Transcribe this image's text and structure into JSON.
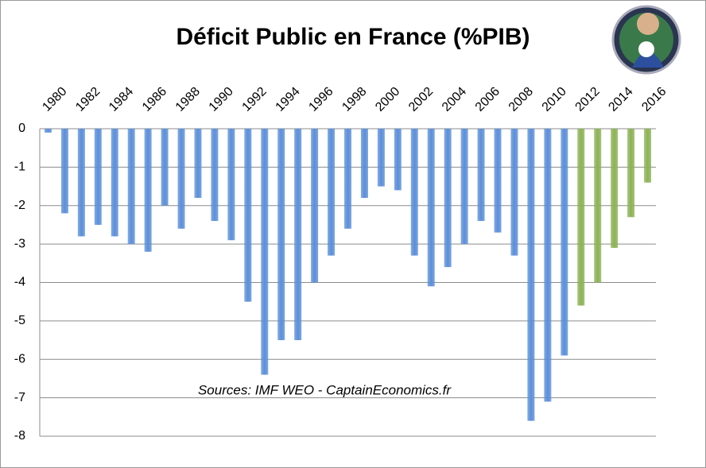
{
  "chart_data": {
    "type": "bar",
    "title": "Déficit Public en France (%PIB)",
    "annotation": "Sources: IMF WEO - CaptainEconomics.fr",
    "categories": [
      "1980",
      null,
      "1982",
      null,
      "1984",
      null,
      "1986",
      null,
      "1988",
      null,
      "1990",
      null,
      "1992",
      null,
      "1994",
      null,
      "1996",
      null,
      "1998",
      null,
      "2000",
      null,
      "2002",
      null,
      "2004",
      null,
      "2006",
      null,
      "2008",
      null,
      "2010",
      null,
      "2012",
      null,
      "2014",
      null,
      "2016"
    ],
    "values": [
      -0.1,
      -2.2,
      -2.8,
      -2.5,
      -2.8,
      -3.0,
      -3.2,
      -2.0,
      -2.6,
      -1.8,
      -2.4,
      -2.9,
      -4.5,
      -6.4,
      -5.5,
      -5.5,
      -4.0,
      -3.3,
      -2.6,
      -1.8,
      -1.5,
      -1.6,
      -3.3,
      -4.1,
      -3.6,
      -3.0,
      -2.4,
      -2.7,
      -3.3,
      -7.6,
      -7.1,
      -5.9,
      -4.6,
      -4.0,
      -3.1,
      -2.3,
      -1.4
    ],
    "colors": [
      "#5b8fd9",
      "#5b8fd9",
      "#5b8fd9",
      "#5b8fd9",
      "#5b8fd9",
      "#5b8fd9",
      "#5b8fd9",
      "#5b8fd9",
      "#5b8fd9",
      "#5b8fd9",
      "#5b8fd9",
      "#5b8fd9",
      "#5b8fd9",
      "#5b8fd9",
      "#5b8fd9",
      "#5b8fd9",
      "#5b8fd9",
      "#5b8fd9",
      "#5b8fd9",
      "#5b8fd9",
      "#5b8fd9",
      "#5b8fd9",
      "#5b8fd9",
      "#5b8fd9",
      "#5b8fd9",
      "#5b8fd9",
      "#5b8fd9",
      "#5b8fd9",
      "#5b8fd9",
      "#5b8fd9",
      "#5b8fd9",
      "#5b8fd9",
      "#8db255",
      "#8db255",
      "#8db255",
      "#8db255",
      "#8db255"
    ],
    "ylim": [
      -8,
      0
    ],
    "yticks": [
      0,
      -1,
      -2,
      -3,
      -4,
      -5,
      -6,
      -7,
      -8
    ],
    "grid": true
  }
}
